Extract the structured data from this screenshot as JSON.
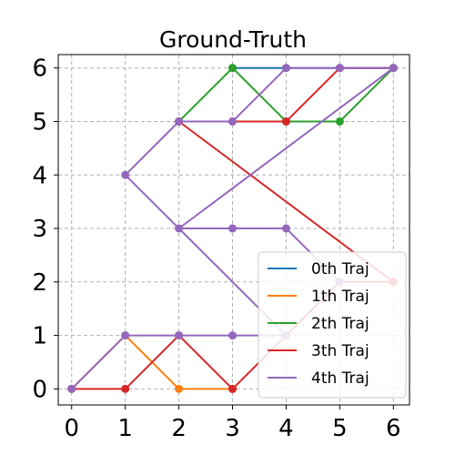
{
  "chart_data": {
    "type": "line",
    "title": "Ground-Truth",
    "xlabel": "",
    "ylabel": "",
    "xlim": [
      -0.25,
      6.3
    ],
    "ylim": [
      -0.3,
      6.25
    ],
    "xticks": [
      0,
      1,
      2,
      3,
      4,
      5,
      6
    ],
    "yticks": [
      0,
      1,
      2,
      3,
      4,
      5,
      6
    ],
    "grid": true,
    "legend_position": "lower-right",
    "series": [
      {
        "name": "0th Traj",
        "color": "#1f77b4",
        "points": [
          [
            3,
            6
          ],
          [
            4,
            6
          ],
          [
            5,
            6
          ],
          [
            6,
            6
          ]
        ]
      },
      {
        "name": "1th Traj",
        "color": "#ff7f0e",
        "points": [
          [
            0,
            0
          ],
          [
            1,
            1
          ],
          [
            2,
            0
          ],
          [
            3,
            0
          ]
        ]
      },
      {
        "name": "2th Traj",
        "color": "#2ca02c",
        "points": [
          [
            2,
            5
          ],
          [
            3,
            6
          ],
          [
            4,
            5
          ],
          [
            5,
            5
          ],
          [
            6,
            6
          ]
        ]
      },
      {
        "name": "3th Traj",
        "color": "#d62728",
        "points": [
          [
            0,
            0
          ],
          [
            1,
            0
          ],
          [
            2,
            1
          ],
          [
            3,
            0
          ],
          [
            4,
            1
          ],
          [
            5,
            2
          ],
          [
            6,
            2
          ],
          [
            2,
            5
          ],
          [
            3,
            5
          ],
          [
            4,
            5
          ],
          [
            5,
            6
          ],
          [
            6,
            6
          ]
        ]
      },
      {
        "name": "4th Traj",
        "color": "#9467bd",
        "points": [
          [
            0,
            0
          ],
          [
            1,
            1
          ],
          [
            2,
            1
          ],
          [
            3,
            1
          ],
          [
            4,
            1
          ],
          [
            1,
            4
          ],
          [
            2,
            5
          ],
          [
            3,
            5
          ],
          [
            4,
            6
          ],
          [
            5,
            6
          ],
          [
            6,
            6
          ],
          [
            2,
            3
          ],
          [
            3,
            3
          ],
          [
            4,
            3
          ],
          [
            5,
            2
          ]
        ]
      }
    ]
  }
}
